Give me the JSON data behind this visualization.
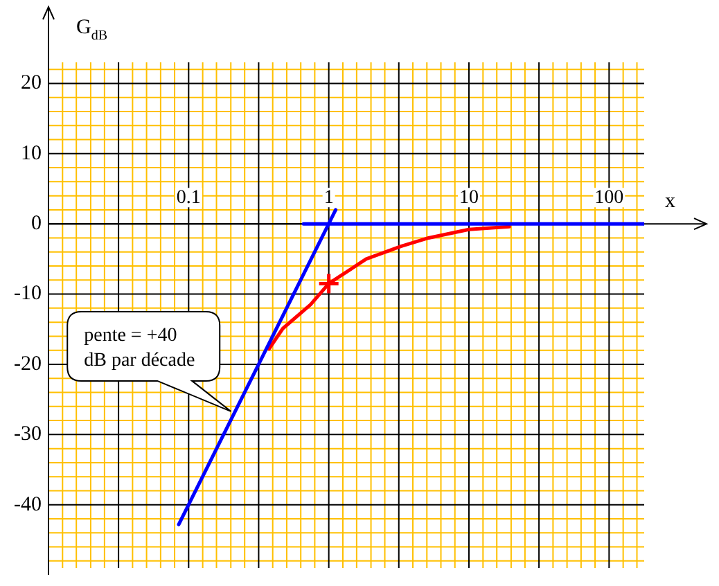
{
  "chart_data": {
    "type": "line",
    "ylabel": "G$_{dB}$",
    "xlabel": "x",
    "log": "x",
    "grid": true,
    "legend": false,
    "marker": "none",
    "xlim": [
      0.01,
      178
    ],
    "ylim": [
      -49,
      23
    ],
    "xticks": [
      {
        "value": 0.01,
        "label": null
      },
      {
        "value": 0.0126,
        "label": null
      },
      {
        "value": 0.0158,
        "label": null
      },
      {
        "value": 0.02,
        "label": null
      },
      {
        "value": 0.0251,
        "label": null
      },
      {
        "value": 0.0316,
        "label": null
      },
      {
        "value": 0.0398,
        "label": null
      },
      {
        "value": 0.0501,
        "label": null
      },
      {
        "value": 0.0631,
        "label": null
      },
      {
        "value": 0.0794,
        "label": null
      },
      0.1,
      {
        "value": 0.126,
        "label": null
      },
      {
        "value": 0.158,
        "label": null
      },
      {
        "value": 0.2,
        "label": null
      },
      {
        "value": 0.251,
        "label": null
      },
      {
        "value": 0.316,
        "label": null
      },
      {
        "value": 0.398,
        "label": null
      },
      {
        "value": 0.501,
        "label": null
      },
      {
        "value": 0.631,
        "label": null
      },
      {
        "value": 0.794,
        "label": null
      },
      1,
      {
        "value": 1.26,
        "label": null
      },
      {
        "value": 1.58,
        "label": null
      },
      {
        "value": 2,
        "label": null
      },
      {
        "value": 2.51,
        "label": null
      },
      {
        "value": 3.16,
        "label": null
      },
      {
        "value": 3.98,
        "label": null
      },
      {
        "value": 5.01,
        "label": null
      },
      {
        "value": 6.31,
        "label": null
      },
      {
        "value": 7.94,
        "label": null
      },
      10,
      {
        "value": 12.6,
        "label": null
      },
      {
        "value": 15.8,
        "label": null
      },
      {
        "value": 20,
        "label": null
      },
      {
        "value": 25.1,
        "label": null
      },
      {
        "value": 31.6,
        "label": null
      },
      {
        "value": 39.8,
        "label": null
      },
      {
        "value": 50.1,
        "label": null
      },
      {
        "value": 63.1,
        "label": null
      },
      {
        "value": 79.4,
        "label": null
      },
      100,
      {
        "value": 126,
        "label": null
      },
      {
        "value": 158,
        "label": null
      }
    ],
    "yticks": [
      {
        "value": -48,
        "label": null
      },
      {
        "value": -46,
        "label": null
      },
      {
        "value": -44,
        "label": null
      },
      {
        "value": -42,
        "label": null
      },
      -40,
      {
        "value": -38,
        "label": null
      },
      {
        "value": -36,
        "label": null
      },
      {
        "value": -34,
        "label": null
      },
      {
        "value": -32,
        "label": null
      },
      -30,
      {
        "value": -28,
        "label": null
      },
      {
        "value": -26,
        "label": null
      },
      {
        "value": -24,
        "label": null
      },
      {
        "value": -22,
        "label": null
      },
      -20,
      {
        "value": -18,
        "label": null
      },
      {
        "value": -16,
        "label": null
      },
      {
        "value": -14,
        "label": null
      },
      {
        "value": -12,
        "label": null
      },
      -10,
      {
        "value": -8,
        "label": null
      },
      {
        "value": -6,
        "label": null
      },
      {
        "value": -4,
        "label": null
      },
      {
        "value": -2,
        "label": null
      },
      0,
      {
        "value": 2,
        "label": null
      },
      {
        "value": 4,
        "label": null
      },
      {
        "value": 6,
        "label": null
      },
      {
        "value": 8,
        "label": null
      },
      10,
      {
        "value": 12,
        "label": null
      },
      {
        "value": 14,
        "label": null
      },
      {
        "value": 16,
        "label": null
      },
      {
        "value": 18,
        "label": null
      },
      20,
      {
        "value": 22,
        "label": null
      }
    ],
    "series": [
      {
        "type": "line",
        "color": "#0000ff",
        "x": [
          0.085,
          1.12
        ],
        "values": [
          -42.8,
          2
        ]
      },
      {
        "type": "line",
        "color": "#0000ff",
        "x": [
          0.66,
          178
        ],
        "values": [
          0,
          0
        ]
      },
      {
        "type": "line",
        "color": "#ff0000",
        "x": [
          0.375,
          0.47,
          0.74,
          1,
          1.85,
          3.27,
          5.16,
          10,
          19.4
        ],
        "values": [
          -17.8,
          -14.9,
          -11.5,
          -8.5,
          -5.0,
          -3.2,
          -2.0,
          -0.8,
          -0.4
        ]
      },
      {
        "type": "scatter",
        "color": "#ff0000",
        "marker": "cross",
        "x": [
          1
        ],
        "values": [
          -8.5
        ]
      }
    ],
    "annotations": [
      {
        "text": "pente = +40\ndB par décade",
        "x": 0.2,
        "y": -26.7
      }
    ]
  }
}
